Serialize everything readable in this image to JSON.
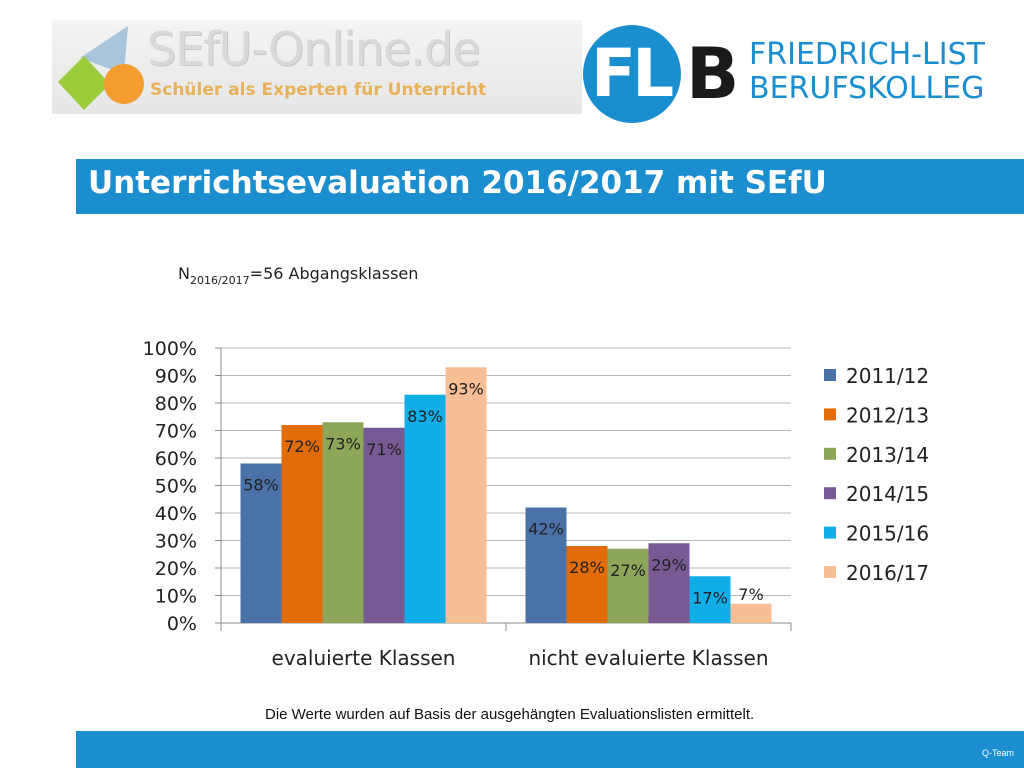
{
  "header": {
    "left_logo": {
      "title": "SEfU-Online.de",
      "subtitle": "Schüler als Experten für Unterricht"
    },
    "right_logo": {
      "mark": "FL",
      "mark_b": "B",
      "line1": "FRIEDRICH-LIST",
      "line2": "BERUFSKOLLEG"
    }
  },
  "title": "Unterrichtsevaluation 2016/2017 mit SEfU",
  "footer": {
    "label": "Q-Team"
  },
  "note": "Die Werte wurden auf Basis der ausgehängten Evaluationslisten ermittelt.",
  "colors": {
    "accent": "#1b8ed0"
  },
  "chart_data": {
    "type": "bar",
    "subtitle": {
      "prefix": "N",
      "subscript": "2016/2017",
      "suffix": "=56 Abgangsklassen"
    },
    "categories": [
      "evaluierte Klassen",
      "nicht evaluierte Klassen"
    ],
    "series": [
      {
        "name": "2011/12",
        "values": [
          58,
          42
        ],
        "labels": [
          "58%",
          "42%"
        ],
        "color": "#4a71a8"
      },
      {
        "name": "2012/13",
        "values": [
          72,
          28
        ],
        "labels": [
          "72%",
          "28%"
        ],
        "color": "#e36c0a"
      },
      {
        "name": "2013/14",
        "values": [
          73,
          27
        ],
        "labels": [
          "73%",
          "27%"
        ],
        "color": "#8ea65a"
      },
      {
        "name": "2014/15",
        "values": [
          71,
          29
        ],
        "labels": [
          "71%",
          "29%"
        ],
        "color": "#775a94"
      },
      {
        "name": "2015/16",
        "values": [
          83,
          17
        ],
        "labels": [
          "83%",
          "17%"
        ],
        "color": "#10aee8"
      },
      {
        "name": "2016/17",
        "values": [
          93,
          7
        ],
        "labels": [
          "93%",
          "7%"
        ],
        "color": "#f8be95"
      }
    ],
    "yticks": [
      "0%",
      "10%",
      "20%",
      "30%",
      "40%",
      "50%",
      "60%",
      "70%",
      "80%",
      "90%",
      "100%"
    ],
    "ylim": [
      0,
      100
    ],
    "grid": true,
    "legend": "right"
  }
}
